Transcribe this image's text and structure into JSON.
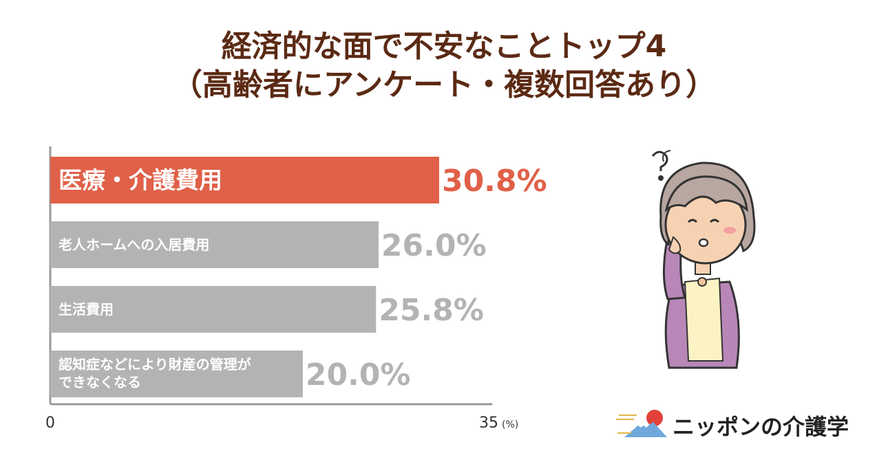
{
  "header": {
    "title_line1": "経済的な面で不安なことトップ4",
    "title_line2": "（高齢者にアンケート・複数回答あり）"
  },
  "chart_data": {
    "type": "bar",
    "orientation": "horizontal",
    "categories": [
      "医療・介護費用",
      "老人ホームへの入居費用",
      "生活費用",
      "認知症などにより財産の管理ができなくなる"
    ],
    "category_lines": [
      [
        "医療・介護費用"
      ],
      [
        "老人ホームへの入居費用"
      ],
      [
        "生活費用"
      ],
      [
        "認知症などにより財産の管理が",
        "できなくなる"
      ]
    ],
    "values": [
      30.8,
      26.0,
      25.8,
      20.0
    ],
    "value_labels": [
      "30.8%",
      "26.0%",
      "25.8%",
      "20.0%"
    ],
    "xlim": [
      0,
      35
    ],
    "x_ticks": [
      "0",
      "35"
    ],
    "x_unit": "(%)",
    "highlight_index": 0,
    "colors": {
      "highlight": "#e06048",
      "default": "#b3b3b3",
      "axis": "#999999"
    }
  },
  "brand": {
    "name": "ニッポンの介護学"
  },
  "illustration": {
    "icon": "worried-elderly-woman-icon"
  }
}
